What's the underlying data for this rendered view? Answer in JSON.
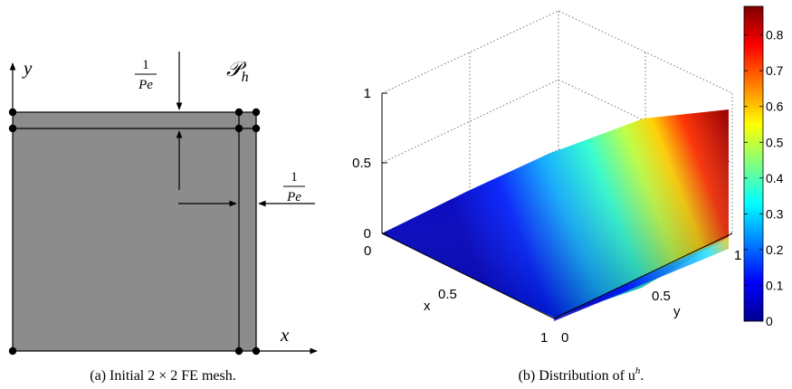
{
  "left_panel": {
    "axis_x_label": "x",
    "axis_y_label": "y",
    "fraction_numerator": "1",
    "fraction_denominator": "Pe",
    "mesh_name": "𝒫",
    "mesh_subscript": "h",
    "caption": "(a)  Initial 2 × 2 FE mesh.",
    "colors": {
      "mesh_fill": "#8c8c8c",
      "line": "#000000"
    }
  },
  "right_panel": {
    "z_ticks": [
      "0",
      "0.5",
      "1"
    ],
    "x_axis_label": "x",
    "x_ticks": [
      "0",
      "0.5",
      "1"
    ],
    "y_axis_label": "y",
    "y_ticks": [
      "0",
      "0.5",
      "1"
    ],
    "colorbar_ticks": [
      "0.8",
      "0.7",
      "0.6",
      "0.5",
      "0.4",
      "0.3",
      "0.2",
      "0.1",
      "0"
    ],
    "colorbar_range": [
      0,
      0.88
    ],
    "colormap": "jet",
    "caption_prefix": "(b)  Distribution of u",
    "caption_superscript": "h",
    "caption_suffix": "."
  }
}
